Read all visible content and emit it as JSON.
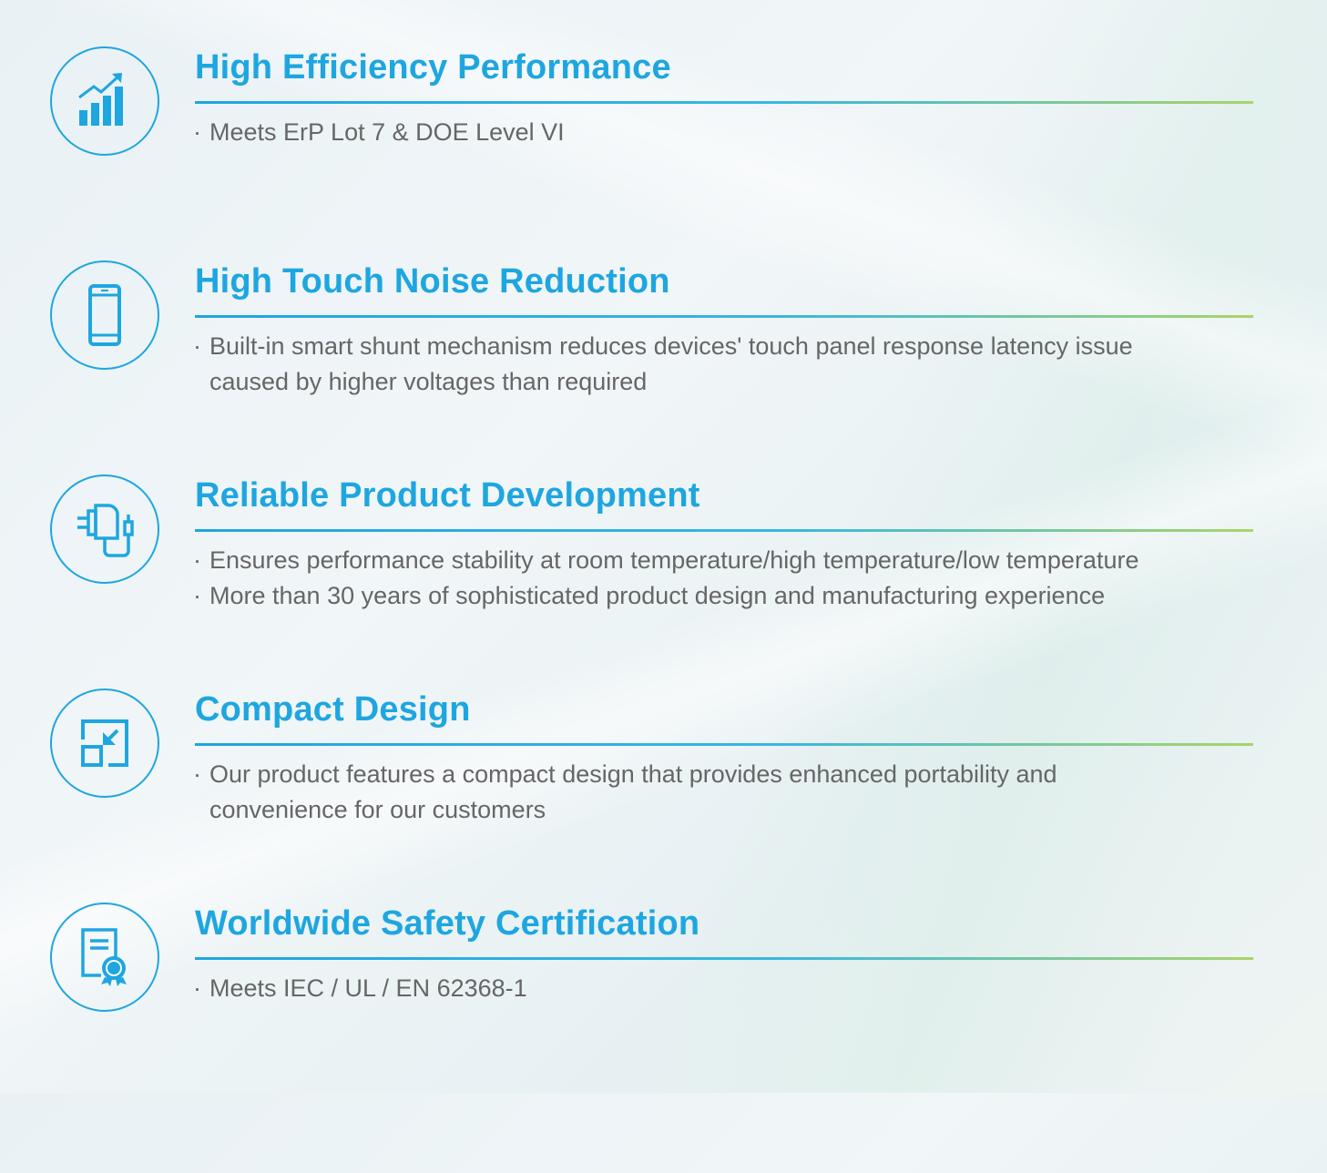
{
  "accent_color": "#1ea6e0",
  "features": [
    {
      "icon": "bar-chart-growth-icon",
      "title": "High Efficiency Performance",
      "bullets": [
        "Meets ErP Lot 7 & DOE Level VI"
      ]
    },
    {
      "icon": "smartphone-icon",
      "title": "High Touch Noise Reduction",
      "bullets": [
        "Built-in smart shunt mechanism reduces devices' touch panel response latency issue",
        "caused by higher voltages than required"
      ]
    },
    {
      "icon": "charger-adapter-icon",
      "title": "Reliable Product Development",
      "bullets": [
        "Ensures performance stability at room temperature/high temperature/low temperature",
        "More than 30 years of sophisticated product  design and manufacturing experience"
      ]
    },
    {
      "icon": "compact-resize-icon",
      "title": "Compact Design",
      "bullets": [
        "Our product features a compact design that provides enhanced portability and",
        "convenience for our customers"
      ]
    },
    {
      "icon": "certificate-icon",
      "title": "Worldwide Safety Certification",
      "bullets": [
        "Meets IEC / UL / EN 62368-1"
      ]
    }
  ]
}
